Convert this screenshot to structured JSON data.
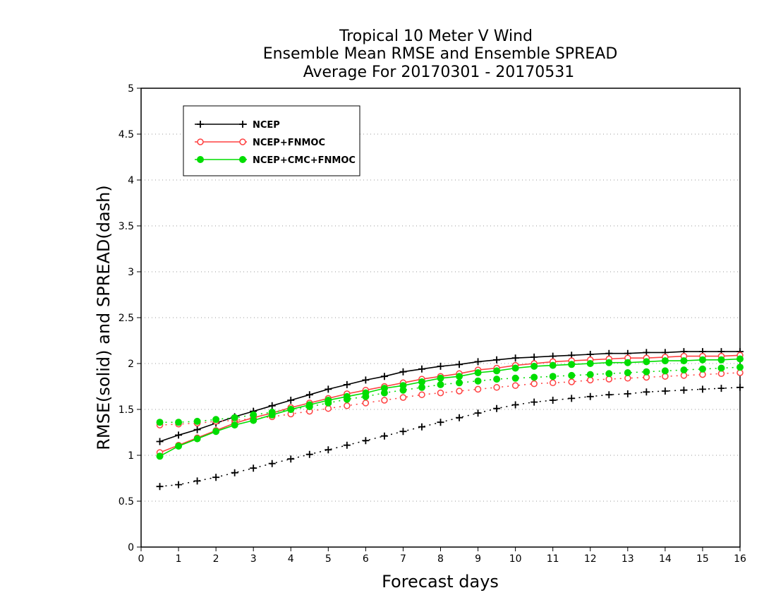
{
  "chart_data": {
    "type": "line",
    "title": [
      "Tropical 10 Meter V Wind",
      "Ensemble Mean RMSE and Ensemble SPREAD",
      "Average For 20170301 - 20170531"
    ],
    "xlabel": "Forecast days",
    "ylabel": "RMSE(solid) and SPREAD(dash)",
    "xlim": [
      0,
      16
    ],
    "ylim": [
      0,
      5
    ],
    "xticks": [
      "0",
      "1",
      "2",
      "3",
      "4",
      "5",
      "6",
      "7",
      "8",
      "9",
      "10",
      "11",
      "12",
      "13",
      "14",
      "15",
      "16"
    ],
    "yticks": [
      "0",
      "0.5",
      "1",
      "1.5",
      "2",
      "2.5",
      "3",
      "3.5",
      "4",
      "4.5",
      "5"
    ],
    "grid": "horizontal-dotted",
    "legend_position": "top-left",
    "x": [
      0.5,
      1,
      1.5,
      2,
      2.5,
      3,
      3.5,
      4,
      4.5,
      5,
      5.5,
      6,
      6.5,
      7,
      7.5,
      8,
      8.5,
      9,
      9.5,
      10,
      10.5,
      11,
      11.5,
      12,
      12.5,
      13,
      13.5,
      14,
      14.5,
      15,
      15.5,
      16
    ],
    "series": [
      {
        "name": "NCEP",
        "color": "#000000",
        "marker": "plus",
        "rmse": [
          1.15,
          1.22,
          1.28,
          1.35,
          1.42,
          1.48,
          1.54,
          1.6,
          1.66,
          1.72,
          1.77,
          1.82,
          1.86,
          1.91,
          1.94,
          1.97,
          1.99,
          2.02,
          2.04,
          2.06,
          2.07,
          2.08,
          2.09,
          2.1,
          2.11,
          2.11,
          2.12,
          2.12,
          2.13,
          2.13,
          2.13,
          2.13
        ],
        "spread": [
          0.66,
          0.68,
          0.72,
          0.76,
          0.81,
          0.86,
          0.91,
          0.96,
          1.01,
          1.06,
          1.11,
          1.16,
          1.21,
          1.26,
          1.31,
          1.36,
          1.41,
          1.46,
          1.51,
          1.55,
          1.58,
          1.6,
          1.62,
          1.64,
          1.66,
          1.67,
          1.69,
          1.7,
          1.71,
          1.72,
          1.73,
          1.74
        ]
      },
      {
        "name": "NCEP+FNMOC",
        "color": "#ff4040",
        "marker": "open-circle",
        "rmse": [
          1.03,
          1.11,
          1.19,
          1.27,
          1.35,
          1.41,
          1.46,
          1.52,
          1.57,
          1.62,
          1.67,
          1.71,
          1.75,
          1.79,
          1.83,
          1.86,
          1.89,
          1.93,
          1.95,
          1.98,
          2.0,
          2.02,
          2.03,
          2.04,
          2.05,
          2.06,
          2.06,
          2.07,
          2.08,
          2.08,
          2.08,
          2.09
        ],
        "spread": [
          1.33,
          1.34,
          1.35,
          1.37,
          1.38,
          1.4,
          1.42,
          1.45,
          1.48,
          1.51,
          1.54,
          1.57,
          1.6,
          1.63,
          1.66,
          1.68,
          1.7,
          1.72,
          1.74,
          1.76,
          1.78,
          1.79,
          1.8,
          1.82,
          1.83,
          1.84,
          1.85,
          1.86,
          1.87,
          1.88,
          1.89,
          1.9
        ]
      },
      {
        "name": "NCEP+CMC+FNMOC",
        "color": "#00dd00",
        "marker": "filled-circle",
        "rmse": [
          0.99,
          1.1,
          1.18,
          1.26,
          1.33,
          1.38,
          1.44,
          1.5,
          1.55,
          1.6,
          1.64,
          1.68,
          1.73,
          1.76,
          1.8,
          1.84,
          1.86,
          1.9,
          1.92,
          1.95,
          1.97,
          1.98,
          1.99,
          2.0,
          2.01,
          2.01,
          2.02,
          2.03,
          2.03,
          2.04,
          2.04,
          2.05
        ],
        "spread": [
          1.36,
          1.36,
          1.37,
          1.39,
          1.41,
          1.44,
          1.47,
          1.5,
          1.53,
          1.57,
          1.61,
          1.64,
          1.68,
          1.71,
          1.74,
          1.77,
          1.79,
          1.81,
          1.83,
          1.84,
          1.85,
          1.86,
          1.87,
          1.88,
          1.89,
          1.9,
          1.91,
          1.92,
          1.93,
          1.94,
          1.95,
          1.96
        ]
      }
    ]
  }
}
